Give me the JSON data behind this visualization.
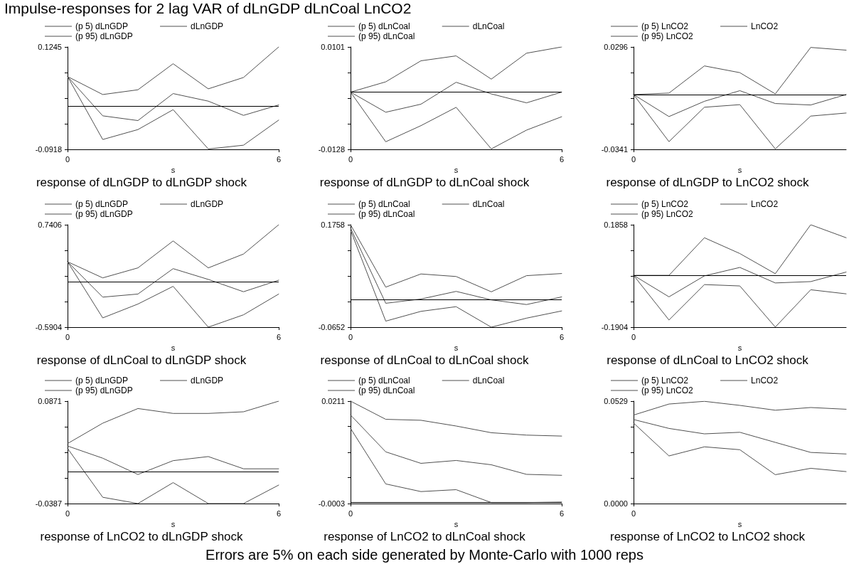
{
  "chart_data": [
    {
      "type": "line",
      "title": "response of dLnGDP to dLnGDP shock",
      "xlabel": "s",
      "annotations": [
        "Impulse-responses for 2 lag VAR of dLnGDP dLnCoal LnCO2"
      ],
      "categories": [
        "0",
        null,
        null,
        null,
        null,
        null,
        "6"
      ],
      "ylim": [
        -0.0918,
        0.1245
      ],
      "yticks": [
        -0.0918,
        {
          "value": -0.0377,
          "label": null
        },
        {
          "value": 0.0164,
          "label": null
        },
        {
          "value": 0.0704,
          "label": null
        },
        0.1245
      ],
      "legend": "top",
      "ref_lines": [
        {
          "axis": "y",
          "value": 0,
          "color": "#000000"
        }
      ],
      "series": [
        {
          "name": "(p 5) dLnGDP",
          "color": "#505050",
          "values": [
            0.062,
            -0.071,
            -0.05,
            -0.008,
            -0.091,
            -0.083,
            -0.03
          ]
        },
        {
          "name": "dLnGDP",
          "color": "#505050",
          "values": [
            0.062,
            -0.021,
            -0.031,
            0.026,
            0.01,
            -0.02,
            0.002
          ]
        },
        {
          "name": "(p 95) dLnGDP",
          "color": "#505050",
          "values": [
            0.062,
            0.024,
            0.034,
            0.089,
            0.036,
            0.06,
            0.1245
          ]
        }
      ]
    },
    {
      "type": "line",
      "title": "response of dLnGDP to dLnCoal shock",
      "xlabel": "s",
      "categories": [
        "0",
        null,
        null,
        null,
        null,
        null,
        "6"
      ],
      "ylim": [
        -0.0128,
        0.0101
      ],
      "yticks": [
        -0.0128,
        {
          "value": -0.0071,
          "label": null
        },
        {
          "value": -0.0014,
          "label": null
        },
        {
          "value": 0.0044,
          "label": null
        },
        0.0101
      ],
      "legend": "top",
      "ref_lines": [
        {
          "axis": "y",
          "value": 0,
          "color": "#000000"
        }
      ],
      "series": [
        {
          "name": "(p 5) dLnCoal",
          "color": "#505050",
          "values": [
            0,
            -0.0111,
            -0.0075,
            -0.0034,
            -0.0127,
            -0.0085,
            -0.0055
          ]
        },
        {
          "name": "dLnCoal",
          "color": "#505050",
          "values": [
            0,
            -0.0045,
            -0.0027,
            0.0022,
            -0.0004,
            -0.0024,
            0
          ]
        },
        {
          "name": "(p 95) dLnCoal",
          "color": "#505050",
          "values": [
            0,
            0.0023,
            0.007,
            0.0081,
            0.0029,
            0.0087,
            0.0101
          ]
        }
      ]
    },
    {
      "type": "line",
      "title": "response of dLnGDP to LnCO2 shock",
      "xlabel": "s",
      "categories": [
        "0",
        null,
        null,
        null,
        null,
        null,
        null
      ],
      "ylim": [
        -0.0341,
        0.0296
      ],
      "yticks": [
        -0.0341,
        {
          "value": -0.0182,
          "label": null
        },
        {
          "value": -0.0022,
          "label": null
        },
        {
          "value": 0.0137,
          "label": null
        },
        0.0296
      ],
      "legend": "top",
      "ref_lines": [
        {
          "axis": "y",
          "value": 0,
          "color": "#000000"
        }
      ],
      "series": [
        {
          "name": "(p 5) LnCO2",
          "color": "#505050",
          "values": [
            0,
            -0.0293,
            -0.0079,
            -0.0063,
            -0.0338,
            -0.0134,
            -0.0115
          ]
        },
        {
          "name": "LnCO2",
          "color": "#505050",
          "values": [
            0,
            -0.0137,
            -0.0042,
            0.0024,
            -0.0056,
            -0.0065,
            0
          ]
        },
        {
          "name": "(p 95) LnCO2",
          "color": "#505050",
          "values": [
            0,
            0.0009,
            0.0178,
            0.0136,
            0.0004,
            0.0293,
            0.0276
          ]
        }
      ]
    },
    {
      "type": "line",
      "title": "response of dLnCoal to dLnGDP shock",
      "xlabel": "s",
      "categories": [
        "0",
        null,
        null,
        null,
        null,
        null,
        "6"
      ],
      "ylim": [
        -0.5904,
        0.7406
      ],
      "yticks": [
        -0.5904,
        {
          "value": -0.2577,
          "label": null
        },
        {
          "value": 0.0751,
          "label": null
        },
        {
          "value": 0.4079,
          "label": null
        },
        0.7406
      ],
      "legend": "top",
      "ref_lines": [
        {
          "axis": "y",
          "value": 0,
          "color": "#000000"
        }
      ],
      "series": [
        {
          "name": "(p 5) dLnGDP",
          "color": "#505050",
          "values": [
            0.26,
            -0.47,
            -0.29,
            -0.06,
            -0.59,
            -0.43,
            -0.16
          ]
        },
        {
          "name": "dLnGDP",
          "color": "#505050",
          "values": [
            0.26,
            -0.2,
            -0.16,
            0.17,
            0.03,
            -0.13,
            0.02
          ]
        },
        {
          "name": "(p 95) dLnGDP",
          "color": "#505050",
          "values": [
            0.26,
            0.05,
            0.18,
            0.53,
            0.18,
            0.36,
            0.7406
          ]
        }
      ]
    },
    {
      "type": "line",
      "title": "response of dLnCoal to dLnCoal shock",
      "xlabel": "s",
      "categories": [
        "0",
        null,
        null,
        null,
        null,
        null,
        "6"
      ],
      "ylim": [
        -0.0652,
        0.1758
      ],
      "yticks": [
        -0.0652,
        {
          "value": -0.005,
          "label": null
        },
        {
          "value": 0.0553,
          "label": null
        },
        {
          "value": 0.1156,
          "label": null
        },
        0.1758
      ],
      "legend": "top",
      "ref_lines": [
        {
          "axis": "y",
          "value": 0,
          "color": "#000000"
        }
      ],
      "series": [
        {
          "name": "(p 5) dLnCoal",
          "color": "#505050",
          "values": [
            0.163,
            -0.051,
            -0.028,
            -0.017,
            -0.0652,
            -0.044,
            -0.027
          ]
        },
        {
          "name": "dLnCoal",
          "color": "#505050",
          "values": [
            0.168,
            -0.009,
            0.001,
            0.019,
            -0.001,
            -0.012,
            0.006
          ]
        },
        {
          "name": "(p 95) dLnCoal",
          "color": "#505050",
          "values": [
            0.1758,
            0.029,
            0.06,
            0.054,
            0.018,
            0.056,
            0.061
          ]
        }
      ]
    },
    {
      "type": "line",
      "title": "response of dLnCoal to LnCO2 shock",
      "xlabel": "s",
      "categories": [
        "0",
        null,
        null,
        null,
        null,
        null,
        null
      ],
      "ylim": [
        -0.1904,
        0.1858
      ],
      "yticks": [
        -0.1904,
        {
          "value": -0.0964,
          "label": null
        },
        {
          "value": -0.0023,
          "label": null
        },
        {
          "value": 0.0917,
          "label": null
        },
        0.1858
      ],
      "legend": "top",
      "ref_lines": [
        {
          "axis": "y",
          "value": 0,
          "color": "#000000"
        }
      ],
      "series": [
        {
          "name": "(p 5) LnCO2",
          "color": "#505050",
          "values": [
            0,
            -0.164,
            -0.034,
            -0.039,
            -0.19,
            -0.053,
            -0.068
          ]
        },
        {
          "name": "LnCO2",
          "color": "#505050",
          "values": [
            0,
            -0.079,
            -0.002,
            0.029,
            -0.028,
            -0.023,
            0.012
          ]
        },
        {
          "name": "(p 95) LnCO2",
          "color": "#505050",
          "values": [
            0,
            0,
            0.138,
            0.08,
            0.006,
            0.1858,
            0.138
          ]
        }
      ]
    },
    {
      "type": "line",
      "title": "response of LnCO2 to dLnGDP shock",
      "xlabel": "s",
      "categories": [
        "0",
        null,
        null,
        null,
        null,
        null,
        "6"
      ],
      "ylim": [
        -0.0387,
        0.0871
      ],
      "yticks": [
        -0.0387,
        {
          "value": -0.0073,
          "label": null
        },
        {
          "value": 0.0242,
          "label": null
        },
        {
          "value": 0.0557,
          "label": null
        },
        0.0871
      ],
      "legend": "top",
      "ref_lines": [
        {
          "axis": "y",
          "value": 0,
          "color": "#000000"
        }
      ],
      "series": [
        {
          "name": "(p 5) dLnGDP",
          "color": "#505050",
          "values": [
            0.029,
            -0.031,
            -0.0387,
            -0.013,
            -0.0387,
            -0.0387,
            -0.016
          ]
        },
        {
          "name": "dLnGDP",
          "color": "#505050",
          "values": [
            0.032,
            0.017,
            -0.003,
            0.014,
            0.019,
            0.004,
            0.004
          ]
        },
        {
          "name": "(p 95) dLnGDP",
          "color": "#505050",
          "values": [
            0.035,
            0.06,
            0.078,
            0.072,
            0.072,
            0.074,
            0.0871
          ]
        }
      ]
    },
    {
      "type": "line",
      "title": "response of LnCO2 to dLnCoal shock",
      "xlabel": "s",
      "categories": [
        "0",
        null,
        null,
        null,
        null,
        null,
        "6"
      ],
      "ylim": [
        -0.0003,
        0.0211
      ],
      "yticks": [
        -0.0003,
        {
          "value": 0.0051,
          "label": null
        },
        {
          "value": 0.0104,
          "label": null
        },
        {
          "value": 0.0158,
          "label": null
        },
        0.0211
      ],
      "legend": "top",
      "ref_lines": [
        {
          "axis": "y",
          "value": 0,
          "color": "#000000"
        }
      ],
      "series": [
        {
          "name": "(p 5) dLnCoal",
          "color": "#505050",
          "values": [
            0.0154,
            0.0038,
            0.0022,
            0.0026,
            -0.0001,
            -0.0001,
            0
          ]
        },
        {
          "name": "dLnCoal",
          "color": "#505050",
          "values": [
            0.0182,
            0.0105,
            0.0081,
            0.0087,
            0.0078,
            0.0058,
            0.0056
          ]
        },
        {
          "name": "(p 95) dLnCoal",
          "color": "#505050",
          "values": [
            0.0211,
            0.0173,
            0.0171,
            0.0159,
            0.0145,
            0.014,
            0.0138
          ]
        }
      ]
    },
    {
      "type": "line",
      "title": "response of LnCO2 to LnCO2 shock",
      "xlabel": "s",
      "annotations": [
        "Errors are 5% on each side generated by Monte-Carlo with 1000 reps"
      ],
      "categories": [
        "0",
        null,
        null,
        null,
        null,
        null,
        null
      ],
      "ylim": [
        0,
        0.0529
      ],
      "yticks": [
        {
          "value": 0,
          "label": "0.0000"
        },
        {
          "value": 0.0132,
          "label": null
        },
        {
          "value": 0.0265,
          "label": null
        },
        {
          "value": 0.0397,
          "label": null
        },
        0.0529
      ],
      "legend": "top",
      "ref_lines": [
        {
          "axis": "y",
          "value": 0,
          "color": "#000000"
        }
      ],
      "series": [
        {
          "name": "(p 5) LnCO2",
          "color": "#505050",
          "values": [
            0.0416,
            0.0246,
            0.0293,
            0.0278,
            0.0149,
            0.0182,
            0.0165
          ]
        },
        {
          "name": "LnCO2",
          "color": "#505050",
          "values": [
            0.0434,
            0.0388,
            0.036,
            0.0368,
            0.0316,
            0.0264,
            0.0256
          ]
        },
        {
          "name": "(p 95) LnCO2",
          "color": "#505050",
          "values": [
            0.0457,
            0.0514,
            0.0528,
            0.0507,
            0.0482,
            0.0496,
            0.0487
          ]
        }
      ]
    }
  ]
}
